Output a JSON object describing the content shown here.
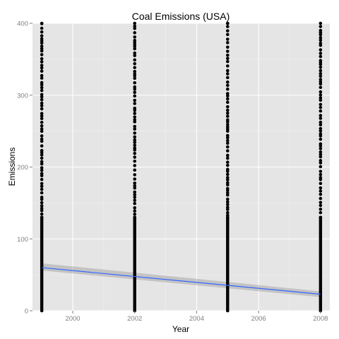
{
  "chart_data": {
    "type": "scatter",
    "title": "Coal Emissions (USA)",
    "xlabel": "Year",
    "ylabel": "Emissions",
    "xlim": [
      1998.7,
      2008.3
    ],
    "ylim": [
      0,
      400
    ],
    "x_ticks": [
      2000,
      2002,
      2004,
      2006,
      2008
    ],
    "y_ticks": [
      0,
      100,
      200,
      300,
      400
    ],
    "grid": true,
    "background": "#e5e5e5",
    "point_color": "#000000",
    "x_groups": [
      1999,
      2002,
      2005,
      2008
    ],
    "point_y_ranges": [
      {
        "x": 1999,
        "y_min": 0,
        "y_max": 400
      },
      {
        "x": 2002,
        "y_min": 0,
        "y_max": 400
      },
      {
        "x": 2005,
        "y_min": 0,
        "y_max": 400
      },
      {
        "x": 2008,
        "y_min": 0,
        "y_max": 400
      }
    ],
    "trend_line": {
      "method": "linear",
      "color": "#3366ff",
      "points": [
        {
          "x": 1999,
          "y": 60
        },
        {
          "x": 2008,
          "y": 23
        }
      ],
      "confidence_band": {
        "color": "#999999",
        "lower": [
          {
            "x": 1999,
            "y": 56
          },
          {
            "x": 2008,
            "y": 19
          }
        ],
        "upper": [
          {
            "x": 1999,
            "y": 66
          },
          {
            "x": 2008,
            "y": 27
          }
        ]
      }
    }
  }
}
